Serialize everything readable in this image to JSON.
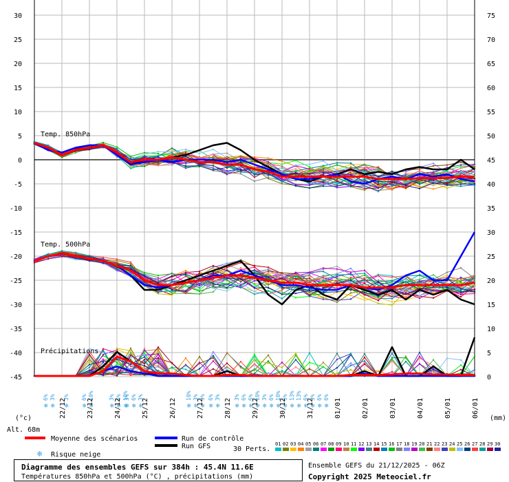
{
  "chart_data": {
    "type": "line",
    "x": [
      "22/12",
      "23/12",
      "24/12",
      "25/12",
      "26/12",
      "27/12",
      "28/12",
      "29/12",
      "30/12",
      "31/12",
      "01/01",
      "02/01",
      "03/01",
      "04/01",
      "05/01",
      "06/01"
    ],
    "y_left_ticks": [
      30,
      25,
      20,
      15,
      10,
      5,
      0,
      -5,
      -10,
      -15,
      -20,
      -25,
      -30,
      -35,
      -40,
      -45
    ],
    "y_right_ticks": [
      75,
      70,
      65,
      60,
      55,
      50,
      45,
      40,
      35,
      30,
      25,
      20,
      15,
      10,
      5,
      0
    ],
    "left_unit": "(°c)",
    "right_unit": "(mm)",
    "altitude": "Alt. 68m",
    "annotations": [
      "Temp. 850hPa",
      "Temp. 500hPa",
      "Précipitations"
    ],
    "series": [
      {
        "name": "Moyenne des scénarios",
        "color": "#ff0000",
        "t850": [
          3.5,
          2.5,
          1,
          2,
          2.5,
          3,
          1.5,
          -0.5,
          0,
          0,
          0.5,
          0,
          -0.5,
          -0.5,
          -1,
          -1,
          -2,
          -2.5,
          -3.5,
          -3.5,
          -3.5,
          -3.5,
          -3.5,
          -3.5,
          -3.5,
          -4,
          -4,
          -4,
          -3.8,
          -3.8,
          -3.8,
          -3.5,
          -3.5
        ],
        "t500": [
          -21,
          -20,
          -19.5,
          -20,
          -20.5,
          -21,
          -22,
          -23,
          -25,
          -26,
          -26,
          -25.5,
          -25,
          -24.5,
          -24,
          -24,
          -24.5,
          -25,
          -25.5,
          -25.5,
          -26,
          -26,
          -26,
          -26,
          -26.5,
          -26.5,
          -26.5,
          -26,
          -26,
          -26,
          -26,
          -26,
          -25.5
        ],
        "precip": [
          0,
          0,
          0,
          0,
          0,
          1,
          4,
          3,
          1,
          0.5,
          0.5,
          0.2,
          0,
          0,
          0.2,
          0.2,
          0,
          0,
          0,
          0,
          0,
          0,
          0,
          0.2,
          0.2,
          0.2,
          0.3,
          0.5,
          0.5,
          0.3,
          0.3,
          0.2,
          0.2
        ]
      },
      {
        "name": "Run de contrôle",
        "color": "#0000ff",
        "t850": [
          3.5,
          2,
          1.5,
          2.5,
          3,
          3,
          1,
          -1,
          -0.5,
          0,
          -0.5,
          0,
          0,
          0,
          -0.5,
          0,
          -1,
          -2,
          -3,
          -4,
          -4,
          -3.5,
          -3,
          -4.5,
          -5,
          -4,
          -3.5,
          -4,
          -3,
          -3.5,
          -3,
          -4,
          -4.5
        ],
        "t500": [
          -21,
          -20,
          -19.5,
          -20,
          -20.5,
          -21,
          -22,
          -24,
          -26,
          -26.5,
          -26,
          -25.5,
          -25,
          -24,
          -24,
          -23,
          -24,
          -25,
          -26,
          -26,
          -26.5,
          -27,
          -27,
          -26,
          -26.5,
          -27,
          -26,
          -24,
          -23,
          -25,
          -25,
          -20,
          -15
        ],
        "precip": [
          0,
          0,
          0,
          0,
          0,
          1,
          2,
          1,
          0.5,
          0,
          0,
          0,
          0,
          0,
          0,
          0,
          0,
          0,
          0,
          0,
          0,
          0,
          0,
          0,
          0.5,
          0,
          0,
          0,
          0,
          0,
          0,
          0,
          0
        ]
      },
      {
        "name": "Run GFS",
        "color": "#000000",
        "t850": [
          3.5,
          2,
          1.5,
          2.5,
          3,
          3,
          1,
          -1,
          0,
          0,
          0.5,
          1,
          2,
          3,
          3.5,
          2,
          0,
          -1.5,
          -3,
          -4,
          -4.5,
          -3.5,
          -3,
          -2,
          -3,
          -2.5,
          -3,
          -2,
          -1.5,
          -2,
          -2,
          0,
          -2
        ],
        "t500": [
          -21,
          -20,
          -19.5,
          -20,
          -20.5,
          -21,
          -22,
          -24,
          -27,
          -27,
          -26,
          -25,
          -24,
          -23,
          -22,
          -21,
          -24,
          -28,
          -30,
          -27,
          -26,
          -28,
          -29,
          -26,
          -27,
          -28,
          -27,
          -29,
          -27,
          -28,
          -27,
          -29,
          -30
        ],
        "precip": [
          0,
          0,
          0,
          0,
          0,
          2,
          5,
          3,
          1,
          0,
          0,
          0,
          0,
          0,
          1,
          0,
          0,
          0,
          0,
          0,
          0,
          0,
          0,
          0,
          1,
          0,
          6,
          0,
          0,
          2,
          0,
          0,
          8
        ]
      }
    ],
    "snow_risk": [
      {
        "day": 0.5,
        "items": [
          "6%",
          "3%"
        ]
      },
      {
        "day": 1.25,
        "items": [
          "3%"
        ]
      },
      {
        "day": 1.9,
        "items": [
          "6%",
          "10%"
        ]
      },
      {
        "day": 2.9,
        "items": [
          "3%",
          "6%",
          "10%"
        ]
      },
      {
        "day": 3.45,
        "items": [
          "3%",
          "6%",
          "3%"
        ]
      },
      {
        "day": 5.7,
        "items": [
          "10%",
          "3%",
          "3%"
        ]
      },
      {
        "day": 6.5,
        "items": [
          "6%",
          "3%"
        ]
      },
      {
        "day": 7.45,
        "items": [
          "3%",
          "6%",
          "6%",
          "10%",
          "3%",
          "6%",
          "10%",
          "6%",
          "13%",
          "13%",
          "6%",
          "3%",
          "6%",
          "6%"
        ]
      }
    ]
  },
  "legend": {
    "mean_label": "Moyenne des scénarios",
    "control_label": "Run de contrôle",
    "gfs_label": "Run GFS",
    "snow_label": "Risque neige",
    "perts_label": "30 Perts.",
    "pert_numbers": [
      "01",
      "02",
      "03",
      "04",
      "05",
      "06",
      "07",
      "08",
      "09",
      "10",
      "11",
      "12",
      "13",
      "14",
      "15",
      "16",
      "17",
      "18",
      "19",
      "20",
      "21",
      "22",
      "23",
      "24",
      "25",
      "26",
      "27",
      "28",
      "29",
      "30"
    ],
    "pert_colors": [
      "#00c0c0",
      "#808000",
      "#ffc000",
      "#ff8000",
      "#a0a0a0",
      "#008080",
      "#ff00ff",
      "#00a000",
      "#ff0080",
      "#c08040",
      "#00ff00",
      "#8000ff",
      "#408080",
      "#c00000",
      "#0080c0",
      "#00c000",
      "#808080",
      "#8080ff",
      "#c000c0",
      "#40c040",
      "#804000",
      "#ff8080",
      "#4040c0",
      "#c0c000",
      "#80c0ff",
      "#004080",
      "#ff4040",
      "#00a0a0",
      "#a00040",
      "#2020a0"
    ]
  },
  "footer": {
    "title": "Diagramme des ensembles GEFS sur 384h : 45.4N 11.6E",
    "subtitle": "Températures 850hPa et 500hPa (°C) , précipitations (mm)",
    "run_info": "Ensemble GEFS du 21/12/2025 - 06Z",
    "copyright": "Copyright 2025 Meteociel.fr"
  }
}
